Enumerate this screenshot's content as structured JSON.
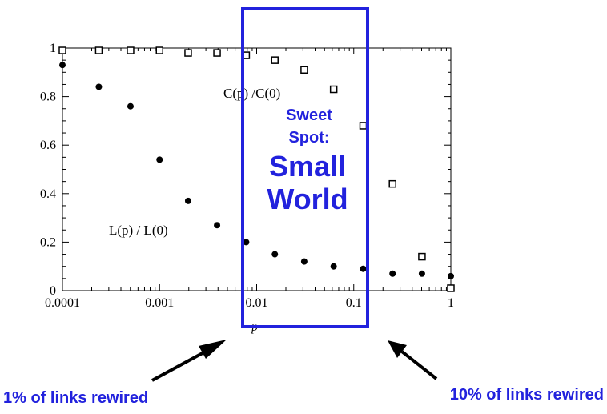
{
  "chart_data": {
    "type": "scatter",
    "x_scale": "log",
    "xlim": [
      0.0001,
      1
    ],
    "ylim": [
      0,
      1
    ],
    "xlabel": "p",
    "x_ticks": [
      "0.0001",
      "0.001",
      "0.01",
      "0.1",
      "1"
    ],
    "y_ticks": [
      "0",
      "0.2",
      "0.4",
      "0.6",
      "0.8",
      "1"
    ],
    "series": [
      {
        "name": "C(p) /C(0)",
        "marker": "open-square",
        "color": "#000000",
        "x": [
          0.0001,
          0.000237,
          0.000502,
          0.001,
          0.00197,
          0.00391,
          0.0078,
          0.0154,
          0.0309,
          0.0621,
          0.125,
          0.251,
          0.504,
          1.0
        ],
        "y": [
          0.99,
          0.99,
          0.99,
          0.99,
          0.98,
          0.98,
          0.97,
          0.95,
          0.91,
          0.83,
          0.68,
          0.44,
          0.14,
          0.01
        ]
      },
      {
        "name": "L(p) / L(0)",
        "marker": "filled-circle",
        "color": "#000000",
        "x": [
          0.0001,
          0.000237,
          0.000502,
          0.001,
          0.00197,
          0.00391,
          0.0078,
          0.0154,
          0.0309,
          0.0621,
          0.125,
          0.251,
          0.504,
          1.0
        ],
        "y": [
          0.93,
          0.84,
          0.76,
          0.54,
          0.37,
          0.27,
          0.2,
          0.15,
          0.12,
          0.1,
          0.09,
          0.07,
          0.07,
          0.06
        ]
      }
    ],
    "highlight_region": {
      "x_from": 0.0072,
      "x_to": 0.14,
      "color": "#2222dd"
    }
  },
  "annotations": {
    "sweet_spot_line1": "Sweet",
    "sweet_spot_line2": "Spot:",
    "small_world_line1": "Small",
    "small_world_line2": "World",
    "left_caption": "1% of links rewired",
    "right_caption": "10% of links rewired",
    "accent_color": "#2222dd"
  }
}
